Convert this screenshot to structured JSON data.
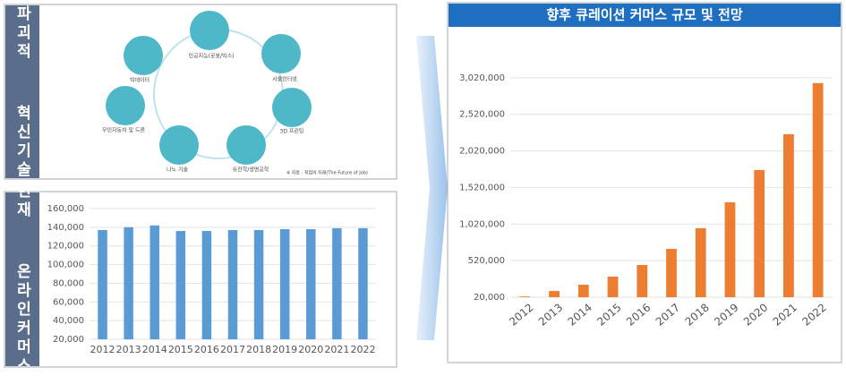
{
  "diagram": {
    "side_label": "파괴적  혁신기술",
    "nodes": [
      {
        "label": "인공지능(로봇/빅스)"
      },
      {
        "label": "사물인터넷"
      },
      {
        "label": "3D 프린팅"
      },
      {
        "label": "유전학/생명공학"
      },
      {
        "label": "나노 기술"
      },
      {
        "label": "무인자동차 및 드론"
      },
      {
        "label": "빅데이터"
      }
    ],
    "source": "※ 자료 : 직업의 미래(The Future of Job)"
  },
  "current_label": "현재  온라인커머스",
  "chart_data": [
    {
      "type": "bar",
      "categories": [
        "2012",
        "2013",
        "2014",
        "2015",
        "2016",
        "2017",
        "2018",
        "2019",
        "2020",
        "2021",
        "2022"
      ],
      "values": [
        137000,
        140000,
        142000,
        136000,
        136000,
        137000,
        137000,
        138000,
        138000,
        139000,
        139000
      ],
      "color": "#5b9bd5",
      "ylim": [
        20000,
        160000
      ],
      "yticks": [
        {
          "value": 20000,
          "label": "20,000"
        },
        {
          "value": 40000,
          "label": "40,000"
        },
        {
          "value": 60000,
          "label": "60,000"
        },
        {
          "value": 80000,
          "label": "80,000"
        },
        {
          "value": 100000,
          "label": "100,000"
        },
        {
          "value": 120000,
          "label": "120,000"
        },
        {
          "value": 140000,
          "label": "140,000"
        },
        {
          "value": 160000,
          "label": "160,000"
        }
      ],
      "grid": true
    },
    {
      "type": "bar",
      "title": "향후 큐레이션 커머스 규모 및 전망",
      "categories": [
        "2012",
        "2013",
        "2014",
        "2015",
        "2016",
        "2017",
        "2018",
        "2019",
        "2020",
        "2021",
        "2022"
      ],
      "values": [
        30000,
        105000,
        191000,
        302000,
        461000,
        681000,
        963000,
        1318000,
        1759000,
        2249000,
        2947000
      ],
      "color": "#ed7d31",
      "ylim": [
        20000,
        3520000
      ],
      "yticks": [
        {
          "value": 20000,
          "label": "20,000"
        },
        {
          "value": 520000,
          "label": "520,000"
        },
        {
          "value": 1020000,
          "label": "1,020,000"
        },
        {
          "value": 1520000,
          "label": "1,520,000"
        },
        {
          "value": 2020000,
          "label": "2,020,000"
        },
        {
          "value": 2520000,
          "label": "2,520,000"
        },
        {
          "value": 3020000,
          "label": "3,020,000"
        }
      ],
      "grid": true
    }
  ]
}
